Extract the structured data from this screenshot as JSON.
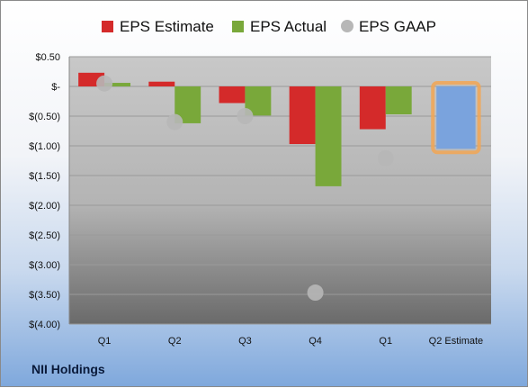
{
  "company": "NII Holdings",
  "chart_data": {
    "type": "bar",
    "categories": [
      "Q1",
      "Q2",
      "Q3",
      "Q4",
      "Q1",
      "Q2 Estimate"
    ],
    "series": [
      {
        "name": "EPS Estimate",
        "color": "#d42a2a",
        "values": [
          0.23,
          0.08,
          -0.28,
          -0.97,
          -0.72,
          null
        ]
      },
      {
        "name": "EPS Actual",
        "color": "#79a83a",
        "values": [
          0.06,
          -0.62,
          -0.49,
          -1.68,
          -0.47,
          null
        ]
      },
      {
        "name": "EPS GAAP",
        "color": "#b7b7b7",
        "marker": "circle",
        "values": [
          0.05,
          -0.6,
          -0.5,
          -3.47,
          -1.21,
          null
        ]
      }
    ],
    "forecast": {
      "category": "Q2 Estimate",
      "value": -1.05,
      "color": "#7aa3dd",
      "highlight": "#f2a654"
    },
    "y_ticks": [
      0.5,
      0,
      -0.5,
      -1.0,
      -1.5,
      -2.0,
      -2.5,
      -3.0,
      -3.5,
      -4.0
    ],
    "y_tick_labels": [
      "$0.50",
      "$-",
      "$(0.50)",
      "$(1.00)",
      "$(1.50)",
      "$(2.00)",
      "$(2.50)",
      "$(3.00)",
      "$(3.50)",
      "$(4.00)"
    ],
    "ylim": [
      -4.0,
      0.5
    ],
    "legend_position": "top",
    "grid": true
  }
}
